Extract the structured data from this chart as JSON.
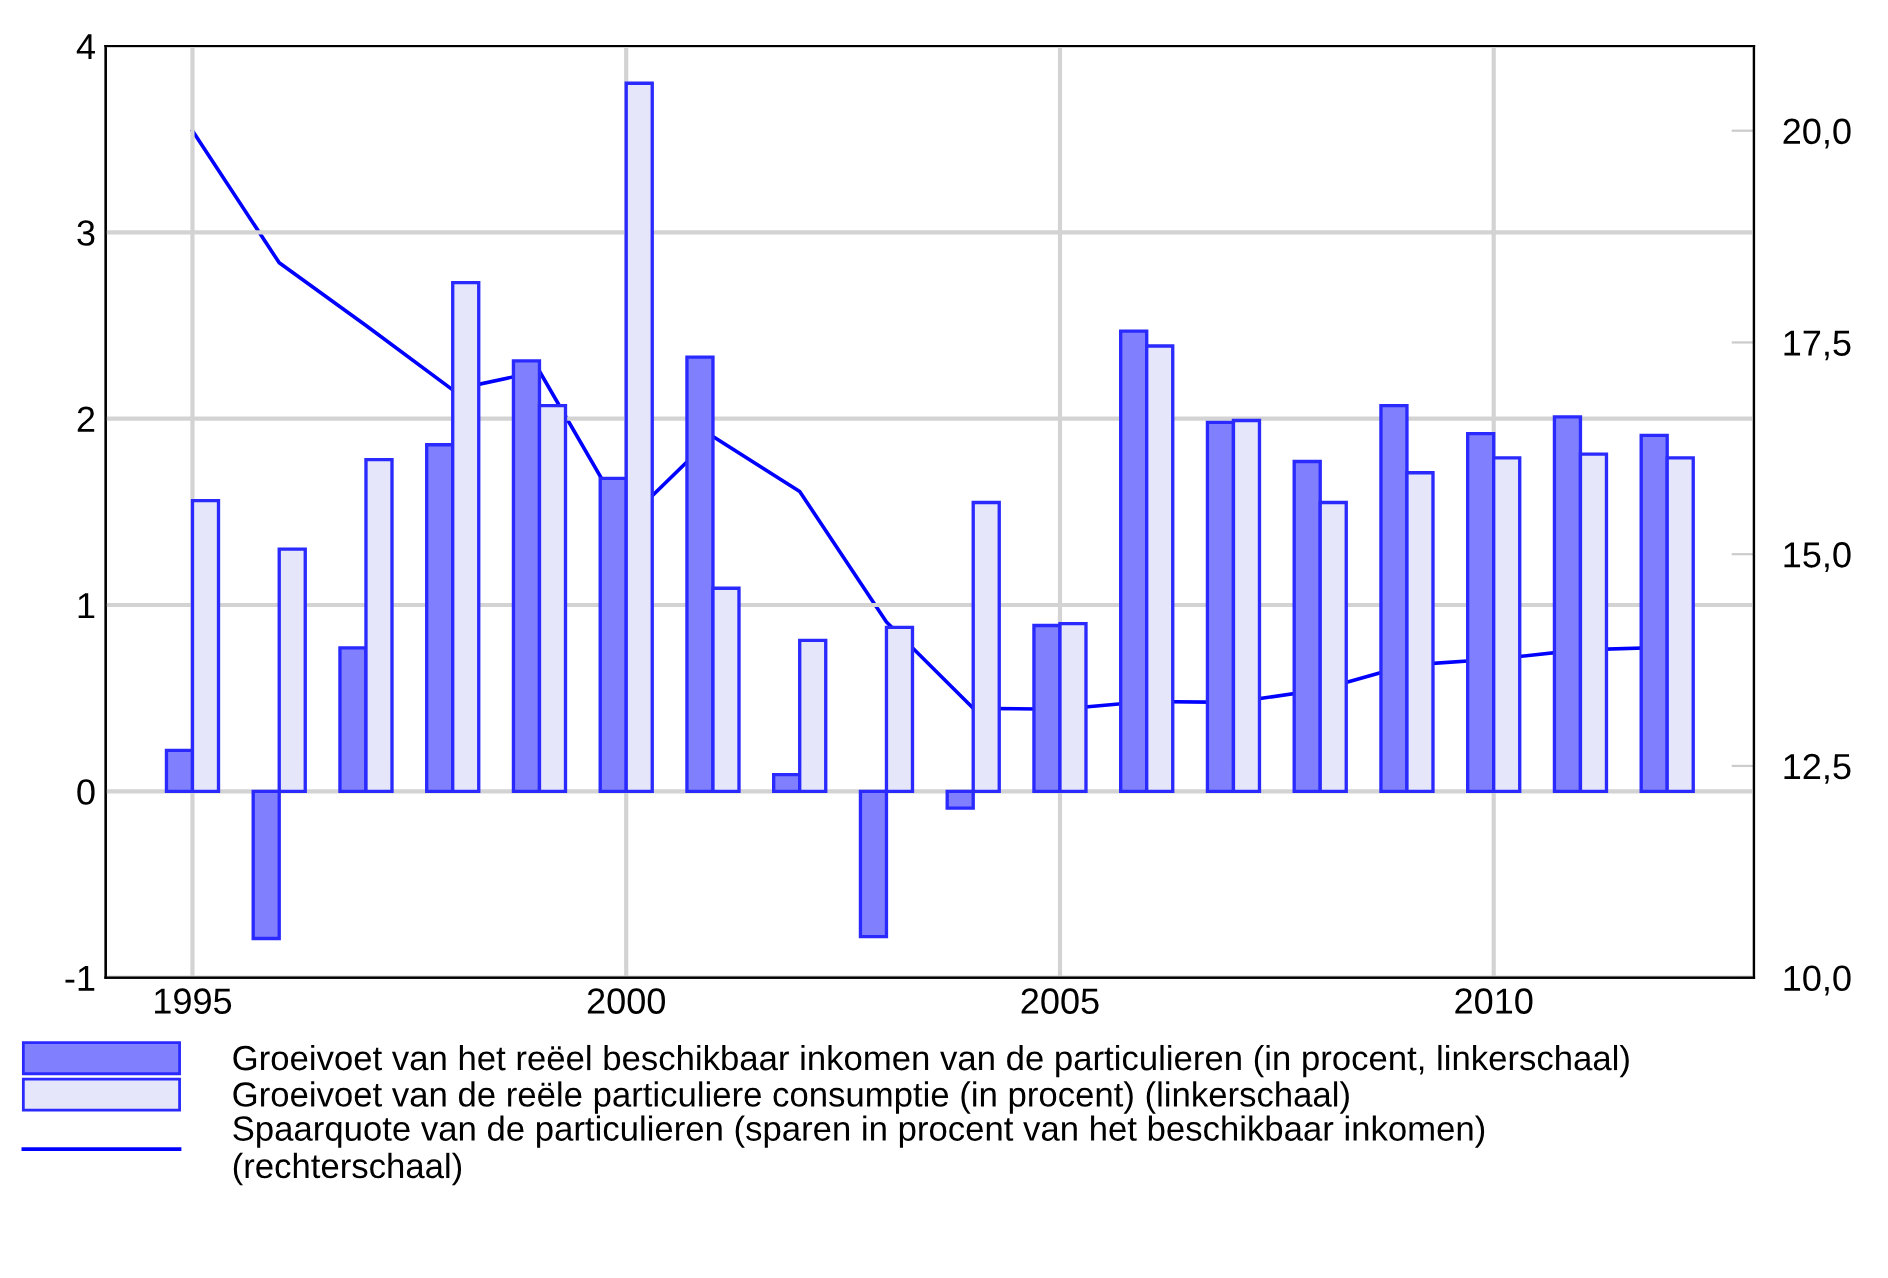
{
  "chart_data": {
    "type": "bar",
    "x": [
      1995,
      1996,
      1997,
      1998,
      1999,
      2000,
      2001,
      2002,
      2003,
      2004,
      2005,
      2006,
      2007,
      2008,
      2009,
      2010,
      2011,
      2012
    ],
    "series": [
      {
        "name": "Groeivoet van het reëel beschikbaar inkomen van de particulieren (in procent, linkerschaal)",
        "color": "#8080ff",
        "values": [
          0.22,
          -0.79,
          0.77,
          1.86,
          2.31,
          1.68,
          2.33,
          0.09,
          -0.78,
          -0.09,
          0.89,
          2.47,
          1.98,
          1.77,
          2.07,
          1.92,
          2.01,
          1.91
        ]
      },
      {
        "name": "Groeivoet van de reële particuliere consumptie (in procent) (linkerschaal)",
        "color": "#e6e6fa",
        "values": [
          1.56,
          1.3,
          1.78,
          2.73,
          2.07,
          3.8,
          1.09,
          0.81,
          0.88,
          1.55,
          0.9,
          2.39,
          1.99,
          1.55,
          1.71,
          1.79,
          1.81,
          1.79
        ]
      },
      {
        "name": "Spaarquote van de particulieren (sparen in procent van het beschikbaar inkomen)\n(rechterschaal)",
        "type": "line",
        "axis": "y2",
        "color": "#0000ff",
        "values": [
          20.0,
          18.44,
          17.7,
          16.94,
          17.16,
          15.39,
          16.39,
          15.74,
          14.2,
          13.18,
          13.17,
          13.26,
          13.25,
          13.4,
          13.69,
          13.76,
          13.87,
          13.9
        ]
      }
    ],
    "xlim": [
      1994,
      2013
    ],
    "xticks": [
      1995,
      2000,
      2005,
      2010
    ],
    "ylim": [
      -1,
      4
    ],
    "yticks": [
      {
        "value": -1,
        "label": "-1"
      },
      0,
      1,
      2,
      3,
      4
    ],
    "y2lim": [
      10,
      21
    ],
    "y2ticks": [
      {
        "value": 10,
        "label": "10,0"
      },
      {
        "value": 12.5,
        "label": "12,5"
      },
      {
        "value": 15,
        "label": "15,0"
      },
      {
        "value": 17.5,
        "label": "17,5"
      },
      {
        "value": 20,
        "label": "20,0"
      }
    ],
    "grid": true,
    "legend": "bottom"
  }
}
